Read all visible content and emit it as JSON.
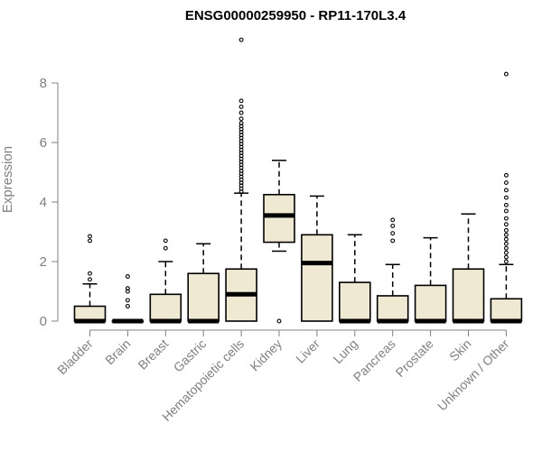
{
  "chart_data": {
    "type": "boxplot",
    "title": "ENSG00000259950 - RP11-170L3.4",
    "ylabel": "Expression",
    "xlabel": "",
    "ylim": [
      0,
      9.6
    ],
    "yticks": [
      0,
      2,
      4,
      6,
      8
    ],
    "box_fill": "#efe8d2",
    "box_stroke": "#000000",
    "categories": [
      "Bladder",
      "Brain",
      "Breast",
      "Gastric",
      "Hematopoietic cells",
      "Kidney",
      "Liver",
      "Lung",
      "Pancreas",
      "Prostate",
      "Skin",
      "Unknown / Other"
    ],
    "boxes": [
      {
        "category": "Bladder",
        "q1": 0,
        "median": 0,
        "q3": 0.5,
        "whisker_low": 0,
        "whisker_high": 1.25,
        "outliers": [
          1.4,
          1.6,
          2.7,
          2.85
        ]
      },
      {
        "category": "Brain",
        "q1": 0,
        "median": 0,
        "q3": 0,
        "whisker_low": 0,
        "whisker_high": 0,
        "outliers": [
          0.5,
          0.7,
          1.0,
          1.1,
          1.5
        ]
      },
      {
        "category": "Breast",
        "q1": 0,
        "median": 0,
        "q3": 0.9,
        "whisker_low": 0,
        "whisker_high": 2.0,
        "outliers": [
          2.45,
          2.7
        ]
      },
      {
        "category": "Gastric",
        "q1": 0,
        "median": 0,
        "q3": 1.6,
        "whisker_low": 0,
        "whisker_high": 2.6,
        "outliers": []
      },
      {
        "category": "Hematopoietic cells",
        "q1": 0,
        "median": 0.9,
        "q3": 1.75,
        "whisker_low": 0,
        "whisker_high": 4.3,
        "outliers": [
          4.35,
          4.45,
          4.55,
          4.65,
          4.75,
          4.85,
          4.95,
          5.05,
          5.15,
          5.25,
          5.35,
          5.45,
          5.55,
          5.65,
          5.75,
          5.85,
          5.95,
          6.05,
          6.15,
          6.25,
          6.35,
          6.45,
          6.55,
          6.65,
          6.8,
          7.0,
          7.2,
          7.4,
          9.45
        ]
      },
      {
        "category": "Kidney",
        "q1": 2.65,
        "median": 3.55,
        "q3": 4.25,
        "whisker_low": 2.35,
        "whisker_high": 5.4,
        "outliers": [
          0
        ]
      },
      {
        "category": "Liver",
        "q1": 0,
        "median": 1.95,
        "q3": 2.9,
        "whisker_low": 0,
        "whisker_high": 4.2,
        "outliers": []
      },
      {
        "category": "Lung",
        "q1": 0,
        "median": 0,
        "q3": 1.3,
        "whisker_low": 0,
        "whisker_high": 2.9,
        "outliers": []
      },
      {
        "category": "Pancreas",
        "q1": 0,
        "median": 0,
        "q3": 0.85,
        "whisker_low": 0,
        "whisker_high": 1.9,
        "outliers": [
          2.7,
          2.95,
          3.2,
          3.4
        ]
      },
      {
        "category": "Prostate",
        "q1": 0,
        "median": 0,
        "q3": 1.2,
        "whisker_low": 0,
        "whisker_high": 2.8,
        "outliers": []
      },
      {
        "category": "Skin",
        "q1": 0,
        "median": 0,
        "q3": 1.75,
        "whisker_low": 0,
        "whisker_high": 3.6,
        "outliers": []
      },
      {
        "category": "Unknown / Other",
        "q1": 0,
        "median": 0,
        "q3": 0.75,
        "whisker_low": 0,
        "whisker_high": 1.9,
        "outliers": [
          2.0,
          2.15,
          2.3,
          2.45,
          2.6,
          2.75,
          2.9,
          3.05,
          3.25,
          3.45,
          3.7,
          3.9,
          4.15,
          4.4,
          4.65,
          4.9,
          8.3
        ]
      }
    ]
  }
}
